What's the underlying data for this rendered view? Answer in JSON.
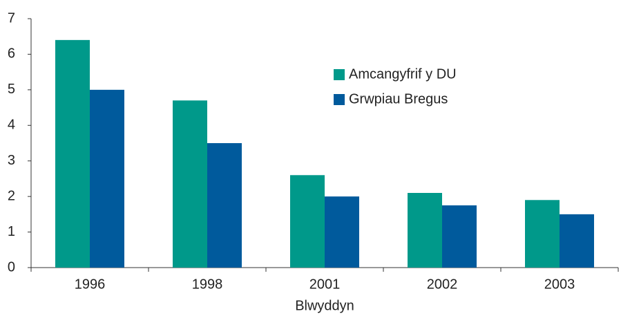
{
  "chart_data": {
    "type": "bar",
    "x_label": "Blwyddyn",
    "categories": [
      "1996",
      "1998",
      "2001",
      "2002",
      "2003"
    ],
    "series": [
      {
        "name": "Amcangyfrif y DU",
        "color": "#00998a",
        "values": [
          6.4,
          4.7,
          2.6,
          2.1,
          1.9
        ]
      },
      {
        "name": "Grwpiau Bregus",
        "color": "#005a9c",
        "values": [
          5.0,
          3.5,
          2.0,
          1.75,
          1.5
        ]
      }
    ],
    "ylim": [
      0,
      7
    ],
    "yticks": [
      0,
      1,
      2,
      3,
      4,
      5,
      6,
      7
    ],
    "grid": false,
    "legend": "upper right"
  }
}
